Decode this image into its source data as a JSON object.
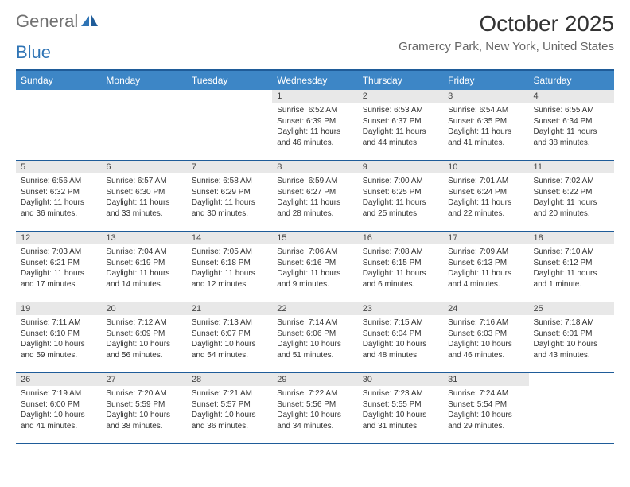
{
  "logo": {
    "part1": "General",
    "part2": "Blue"
  },
  "title": "October 2025",
  "location": "Gramercy Park, New York, United States",
  "colors": {
    "header_bg": "#3d86c6",
    "header_border": "#1f5c99",
    "daynum_bg": "#e8e8e8",
    "text": "#333333",
    "logo_gray": "#707070",
    "logo_blue": "#2f74b5"
  },
  "day_names": [
    "Sunday",
    "Monday",
    "Tuesday",
    "Wednesday",
    "Thursday",
    "Friday",
    "Saturday"
  ],
  "weeks": [
    [
      {
        "n": "",
        "empty": true
      },
      {
        "n": "",
        "empty": true
      },
      {
        "n": "",
        "empty": true
      },
      {
        "n": "1",
        "sunrise": "Sunrise: 6:52 AM",
        "sunset": "Sunset: 6:39 PM",
        "daylight": "Daylight: 11 hours and 46 minutes."
      },
      {
        "n": "2",
        "sunrise": "Sunrise: 6:53 AM",
        "sunset": "Sunset: 6:37 PM",
        "daylight": "Daylight: 11 hours and 44 minutes."
      },
      {
        "n": "3",
        "sunrise": "Sunrise: 6:54 AM",
        "sunset": "Sunset: 6:35 PM",
        "daylight": "Daylight: 11 hours and 41 minutes."
      },
      {
        "n": "4",
        "sunrise": "Sunrise: 6:55 AM",
        "sunset": "Sunset: 6:34 PM",
        "daylight": "Daylight: 11 hours and 38 minutes."
      }
    ],
    [
      {
        "n": "5",
        "sunrise": "Sunrise: 6:56 AM",
        "sunset": "Sunset: 6:32 PM",
        "daylight": "Daylight: 11 hours and 36 minutes."
      },
      {
        "n": "6",
        "sunrise": "Sunrise: 6:57 AM",
        "sunset": "Sunset: 6:30 PM",
        "daylight": "Daylight: 11 hours and 33 minutes."
      },
      {
        "n": "7",
        "sunrise": "Sunrise: 6:58 AM",
        "sunset": "Sunset: 6:29 PM",
        "daylight": "Daylight: 11 hours and 30 minutes."
      },
      {
        "n": "8",
        "sunrise": "Sunrise: 6:59 AM",
        "sunset": "Sunset: 6:27 PM",
        "daylight": "Daylight: 11 hours and 28 minutes."
      },
      {
        "n": "9",
        "sunrise": "Sunrise: 7:00 AM",
        "sunset": "Sunset: 6:25 PM",
        "daylight": "Daylight: 11 hours and 25 minutes."
      },
      {
        "n": "10",
        "sunrise": "Sunrise: 7:01 AM",
        "sunset": "Sunset: 6:24 PM",
        "daylight": "Daylight: 11 hours and 22 minutes."
      },
      {
        "n": "11",
        "sunrise": "Sunrise: 7:02 AM",
        "sunset": "Sunset: 6:22 PM",
        "daylight": "Daylight: 11 hours and 20 minutes."
      }
    ],
    [
      {
        "n": "12",
        "sunrise": "Sunrise: 7:03 AM",
        "sunset": "Sunset: 6:21 PM",
        "daylight": "Daylight: 11 hours and 17 minutes."
      },
      {
        "n": "13",
        "sunrise": "Sunrise: 7:04 AM",
        "sunset": "Sunset: 6:19 PM",
        "daylight": "Daylight: 11 hours and 14 minutes."
      },
      {
        "n": "14",
        "sunrise": "Sunrise: 7:05 AM",
        "sunset": "Sunset: 6:18 PM",
        "daylight": "Daylight: 11 hours and 12 minutes."
      },
      {
        "n": "15",
        "sunrise": "Sunrise: 7:06 AM",
        "sunset": "Sunset: 6:16 PM",
        "daylight": "Daylight: 11 hours and 9 minutes."
      },
      {
        "n": "16",
        "sunrise": "Sunrise: 7:08 AM",
        "sunset": "Sunset: 6:15 PM",
        "daylight": "Daylight: 11 hours and 6 minutes."
      },
      {
        "n": "17",
        "sunrise": "Sunrise: 7:09 AM",
        "sunset": "Sunset: 6:13 PM",
        "daylight": "Daylight: 11 hours and 4 minutes."
      },
      {
        "n": "18",
        "sunrise": "Sunrise: 7:10 AM",
        "sunset": "Sunset: 6:12 PM",
        "daylight": "Daylight: 11 hours and 1 minute."
      }
    ],
    [
      {
        "n": "19",
        "sunrise": "Sunrise: 7:11 AM",
        "sunset": "Sunset: 6:10 PM",
        "daylight": "Daylight: 10 hours and 59 minutes."
      },
      {
        "n": "20",
        "sunrise": "Sunrise: 7:12 AM",
        "sunset": "Sunset: 6:09 PM",
        "daylight": "Daylight: 10 hours and 56 minutes."
      },
      {
        "n": "21",
        "sunrise": "Sunrise: 7:13 AM",
        "sunset": "Sunset: 6:07 PM",
        "daylight": "Daylight: 10 hours and 54 minutes."
      },
      {
        "n": "22",
        "sunrise": "Sunrise: 7:14 AM",
        "sunset": "Sunset: 6:06 PM",
        "daylight": "Daylight: 10 hours and 51 minutes."
      },
      {
        "n": "23",
        "sunrise": "Sunrise: 7:15 AM",
        "sunset": "Sunset: 6:04 PM",
        "daylight": "Daylight: 10 hours and 48 minutes."
      },
      {
        "n": "24",
        "sunrise": "Sunrise: 7:16 AM",
        "sunset": "Sunset: 6:03 PM",
        "daylight": "Daylight: 10 hours and 46 minutes."
      },
      {
        "n": "25",
        "sunrise": "Sunrise: 7:18 AM",
        "sunset": "Sunset: 6:01 PM",
        "daylight": "Daylight: 10 hours and 43 minutes."
      }
    ],
    [
      {
        "n": "26",
        "sunrise": "Sunrise: 7:19 AM",
        "sunset": "Sunset: 6:00 PM",
        "daylight": "Daylight: 10 hours and 41 minutes."
      },
      {
        "n": "27",
        "sunrise": "Sunrise: 7:20 AM",
        "sunset": "Sunset: 5:59 PM",
        "daylight": "Daylight: 10 hours and 38 minutes."
      },
      {
        "n": "28",
        "sunrise": "Sunrise: 7:21 AM",
        "sunset": "Sunset: 5:57 PM",
        "daylight": "Daylight: 10 hours and 36 minutes."
      },
      {
        "n": "29",
        "sunrise": "Sunrise: 7:22 AM",
        "sunset": "Sunset: 5:56 PM",
        "daylight": "Daylight: 10 hours and 34 minutes."
      },
      {
        "n": "30",
        "sunrise": "Sunrise: 7:23 AM",
        "sunset": "Sunset: 5:55 PM",
        "daylight": "Daylight: 10 hours and 31 minutes."
      },
      {
        "n": "31",
        "sunrise": "Sunrise: 7:24 AM",
        "sunset": "Sunset: 5:54 PM",
        "daylight": "Daylight: 10 hours and 29 minutes."
      },
      {
        "n": "",
        "empty": true
      }
    ]
  ]
}
